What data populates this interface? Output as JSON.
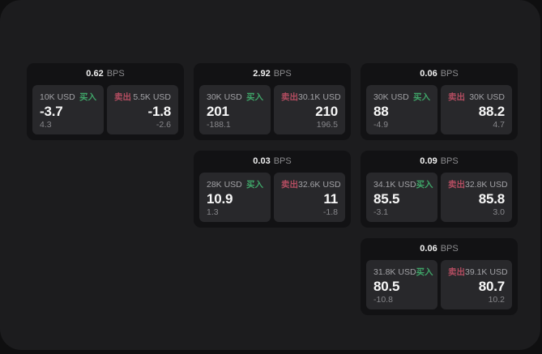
{
  "labels": {
    "bps_suffix": "BPS",
    "buy": "买入",
    "sell": "卖出"
  },
  "colors": {
    "page_bg": "#0f0f10",
    "panel_bg": "#1c1c1e",
    "card_bg": "#121214",
    "tile_bg": "#28282b",
    "buy_green": "#3fa468",
    "sell_red": "#b34d61",
    "text_primary": "#f7f7f7",
    "text_muted": "#8b8b8e"
  },
  "cards": [
    {
      "row": 0,
      "col": 0,
      "bps": "0.62",
      "buy": {
        "amount": "10K USD",
        "value": "-3.7",
        "delta": "4.3"
      },
      "sell": {
        "amount": "5.5K USD",
        "value": "-1.8",
        "delta": "-2.6"
      }
    },
    {
      "row": 0,
      "col": 1,
      "bps": "2.92",
      "buy": {
        "amount": "30K USD",
        "value": "201",
        "delta": "-188.1"
      },
      "sell": {
        "amount": "30.1K USD",
        "value": "210",
        "delta": "196.5"
      }
    },
    {
      "row": 0,
      "col": 2,
      "bps": "0.06",
      "buy": {
        "amount": "30K USD",
        "value": "88",
        "delta": "-4.9"
      },
      "sell": {
        "amount": "30K USD",
        "value": "88.2",
        "delta": "4.7"
      }
    },
    {
      "row": 1,
      "col": 1,
      "bps": "0.03",
      "buy": {
        "amount": "28K USD",
        "value": "10.9",
        "delta": "1.3"
      },
      "sell": {
        "amount": "32.6K USD",
        "value": "11",
        "delta": "-1.8"
      }
    },
    {
      "row": 1,
      "col": 2,
      "bps": "0.09",
      "buy": {
        "amount": "34.1K USD",
        "value": "85.5",
        "delta": "-3.1"
      },
      "sell": {
        "amount": "32.8K USD",
        "value": "85.8",
        "delta": "3.0"
      }
    },
    {
      "row": 2,
      "col": 2,
      "bps": "0.06",
      "buy": {
        "amount": "31.8K USD",
        "value": "80.5",
        "delta": "-10.8"
      },
      "sell": {
        "amount": "39.1K USD",
        "value": "80.7",
        "delta": "10.2"
      }
    }
  ]
}
